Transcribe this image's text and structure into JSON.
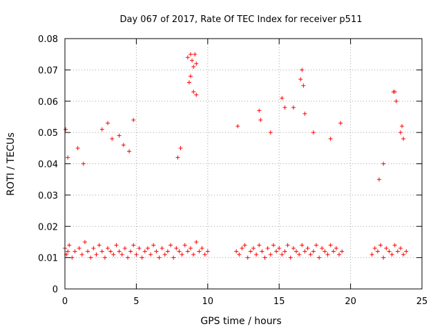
{
  "chart_data": {
    "type": "scatter",
    "title": "Day 067 of 2017, Rate Of TEC Index for receiver p511",
    "xlabel": "GPS time / hours",
    "ylabel": "ROTI / TECUs",
    "xlim": [
      0,
      25
    ],
    "ylim": [
      0,
      0.08
    ],
    "xticks": [
      0,
      5,
      10,
      15,
      20,
      25
    ],
    "yticks": [
      0,
      0.01,
      0.02,
      0.03,
      0.04,
      0.05,
      0.06,
      0.07,
      0.08
    ],
    "xtick_labels": [
      "0",
      "5",
      "10",
      "15",
      "20",
      "25"
    ],
    "ytick_labels": [
      "0",
      "0.01",
      "0.02",
      "0.03",
      "0.04",
      "0.05",
      "0.06",
      "0.07",
      "0.08"
    ],
    "grid": true,
    "marker": "+",
    "color": "#ff0000",
    "series": [
      {
        "x": [
          0.0,
          0.1,
          0.2,
          0.3,
          0.5,
          0.7,
          1.0,
          1.2,
          1.4,
          1.6,
          1.8,
          2.0,
          2.2,
          2.4,
          2.6,
          2.8,
          3.0,
          3.2,
          3.4,
          3.6,
          3.8,
          4.0,
          4.2,
          4.4,
          4.6,
          4.8,
          5.0,
          5.2,
          5.4,
          5.6,
          5.8,
          6.0,
          6.2,
          6.4,
          6.6,
          6.8,
          7.0,
          7.2,
          7.4,
          7.6,
          7.8,
          8.0,
          8.2,
          8.4,
          8.6,
          8.8,
          9.0,
          9.2,
          9.4,
          9.6,
          9.8,
          10.0,
          0.05,
          0.2,
          0.9,
          1.3,
          2.6,
          3.0,
          3.3,
          3.8,
          4.1,
          4.5,
          4.8,
          7.9,
          8.1,
          8.6,
          8.8,
          8.9,
          9.0,
          9.1,
          9.2,
          8.7,
          9.0,
          9.2,
          8.8,
          12.0,
          12.2,
          12.4,
          12.6,
          12.8,
          13.0,
          13.2,
          13.4,
          13.6,
          13.8,
          14.0,
          14.2,
          14.4,
          14.6,
          14.8,
          15.0,
          15.2,
          15.4,
          15.6,
          15.8,
          16.0,
          16.2,
          16.4,
          16.6,
          16.8,
          17.0,
          17.2,
          17.4,
          17.6,
          17.8,
          18.0,
          18.2,
          18.4,
          18.6,
          18.8,
          19.0,
          19.2,
          19.4,
          12.1,
          13.6,
          13.7,
          14.4,
          15.2,
          15.4,
          16.0,
          16.5,
          16.6,
          16.7,
          16.8,
          17.4,
          18.6,
          19.3,
          21.5,
          21.7,
          21.9,
          22.1,
          22.3,
          22.5,
          22.7,
          22.9,
          23.1,
          23.3,
          23.5,
          23.7,
          23.9,
          22.0,
          22.3,
          23.0,
          23.1,
          23.2,
          23.5,
          23.6,
          23.7
        ],
        "y": [
          0.013,
          0.011,
          0.012,
          0.014,
          0.01,
          0.012,
          0.013,
          0.011,
          0.015,
          0.012,
          0.01,
          0.013,
          0.011,
          0.014,
          0.012,
          0.01,
          0.013,
          0.012,
          0.011,
          0.014,
          0.012,
          0.011,
          0.013,
          0.01,
          0.012,
          0.014,
          0.011,
          0.013,
          0.01,
          0.012,
          0.013,
          0.011,
          0.014,
          0.012,
          0.01,
          0.013,
          0.011,
          0.012,
          0.014,
          0.01,
          0.013,
          0.012,
          0.011,
          0.014,
          0.012,
          0.013,
          0.011,
          0.015,
          0.012,
          0.013,
          0.011,
          0.012,
          0.051,
          0.042,
          0.045,
          0.04,
          0.051,
          0.053,
          0.048,
          0.049,
          0.046,
          0.044,
          0.054,
          0.042,
          0.045,
          0.074,
          0.075,
          0.073,
          0.071,
          0.075,
          0.072,
          0.066,
          0.063,
          0.062,
          0.068,
          0.012,
          0.011,
          0.013,
          0.014,
          0.01,
          0.012,
          0.013,
          0.011,
          0.014,
          0.012,
          0.01,
          0.013,
          0.011,
          0.014,
          0.012,
          0.013,
          0.011,
          0.012,
          0.014,
          0.01,
          0.013,
          0.012,
          0.011,
          0.014,
          0.012,
          0.013,
          0.011,
          0.012,
          0.014,
          0.01,
          0.013,
          0.012,
          0.011,
          0.014,
          0.012,
          0.013,
          0.011,
          0.012,
          0.052,
          0.057,
          0.054,
          0.05,
          0.061,
          0.058,
          0.058,
          0.067,
          0.07,
          0.065,
          0.056,
          0.05,
          0.048,
          0.053,
          0.011,
          0.013,
          0.012,
          0.014,
          0.01,
          0.013,
          0.012,
          0.011,
          0.014,
          0.012,
          0.013,
          0.011,
          0.012,
          0.035,
          0.04,
          0.063,
          0.063,
          0.06,
          0.05,
          0.052,
          0.048
        ]
      }
    ]
  }
}
